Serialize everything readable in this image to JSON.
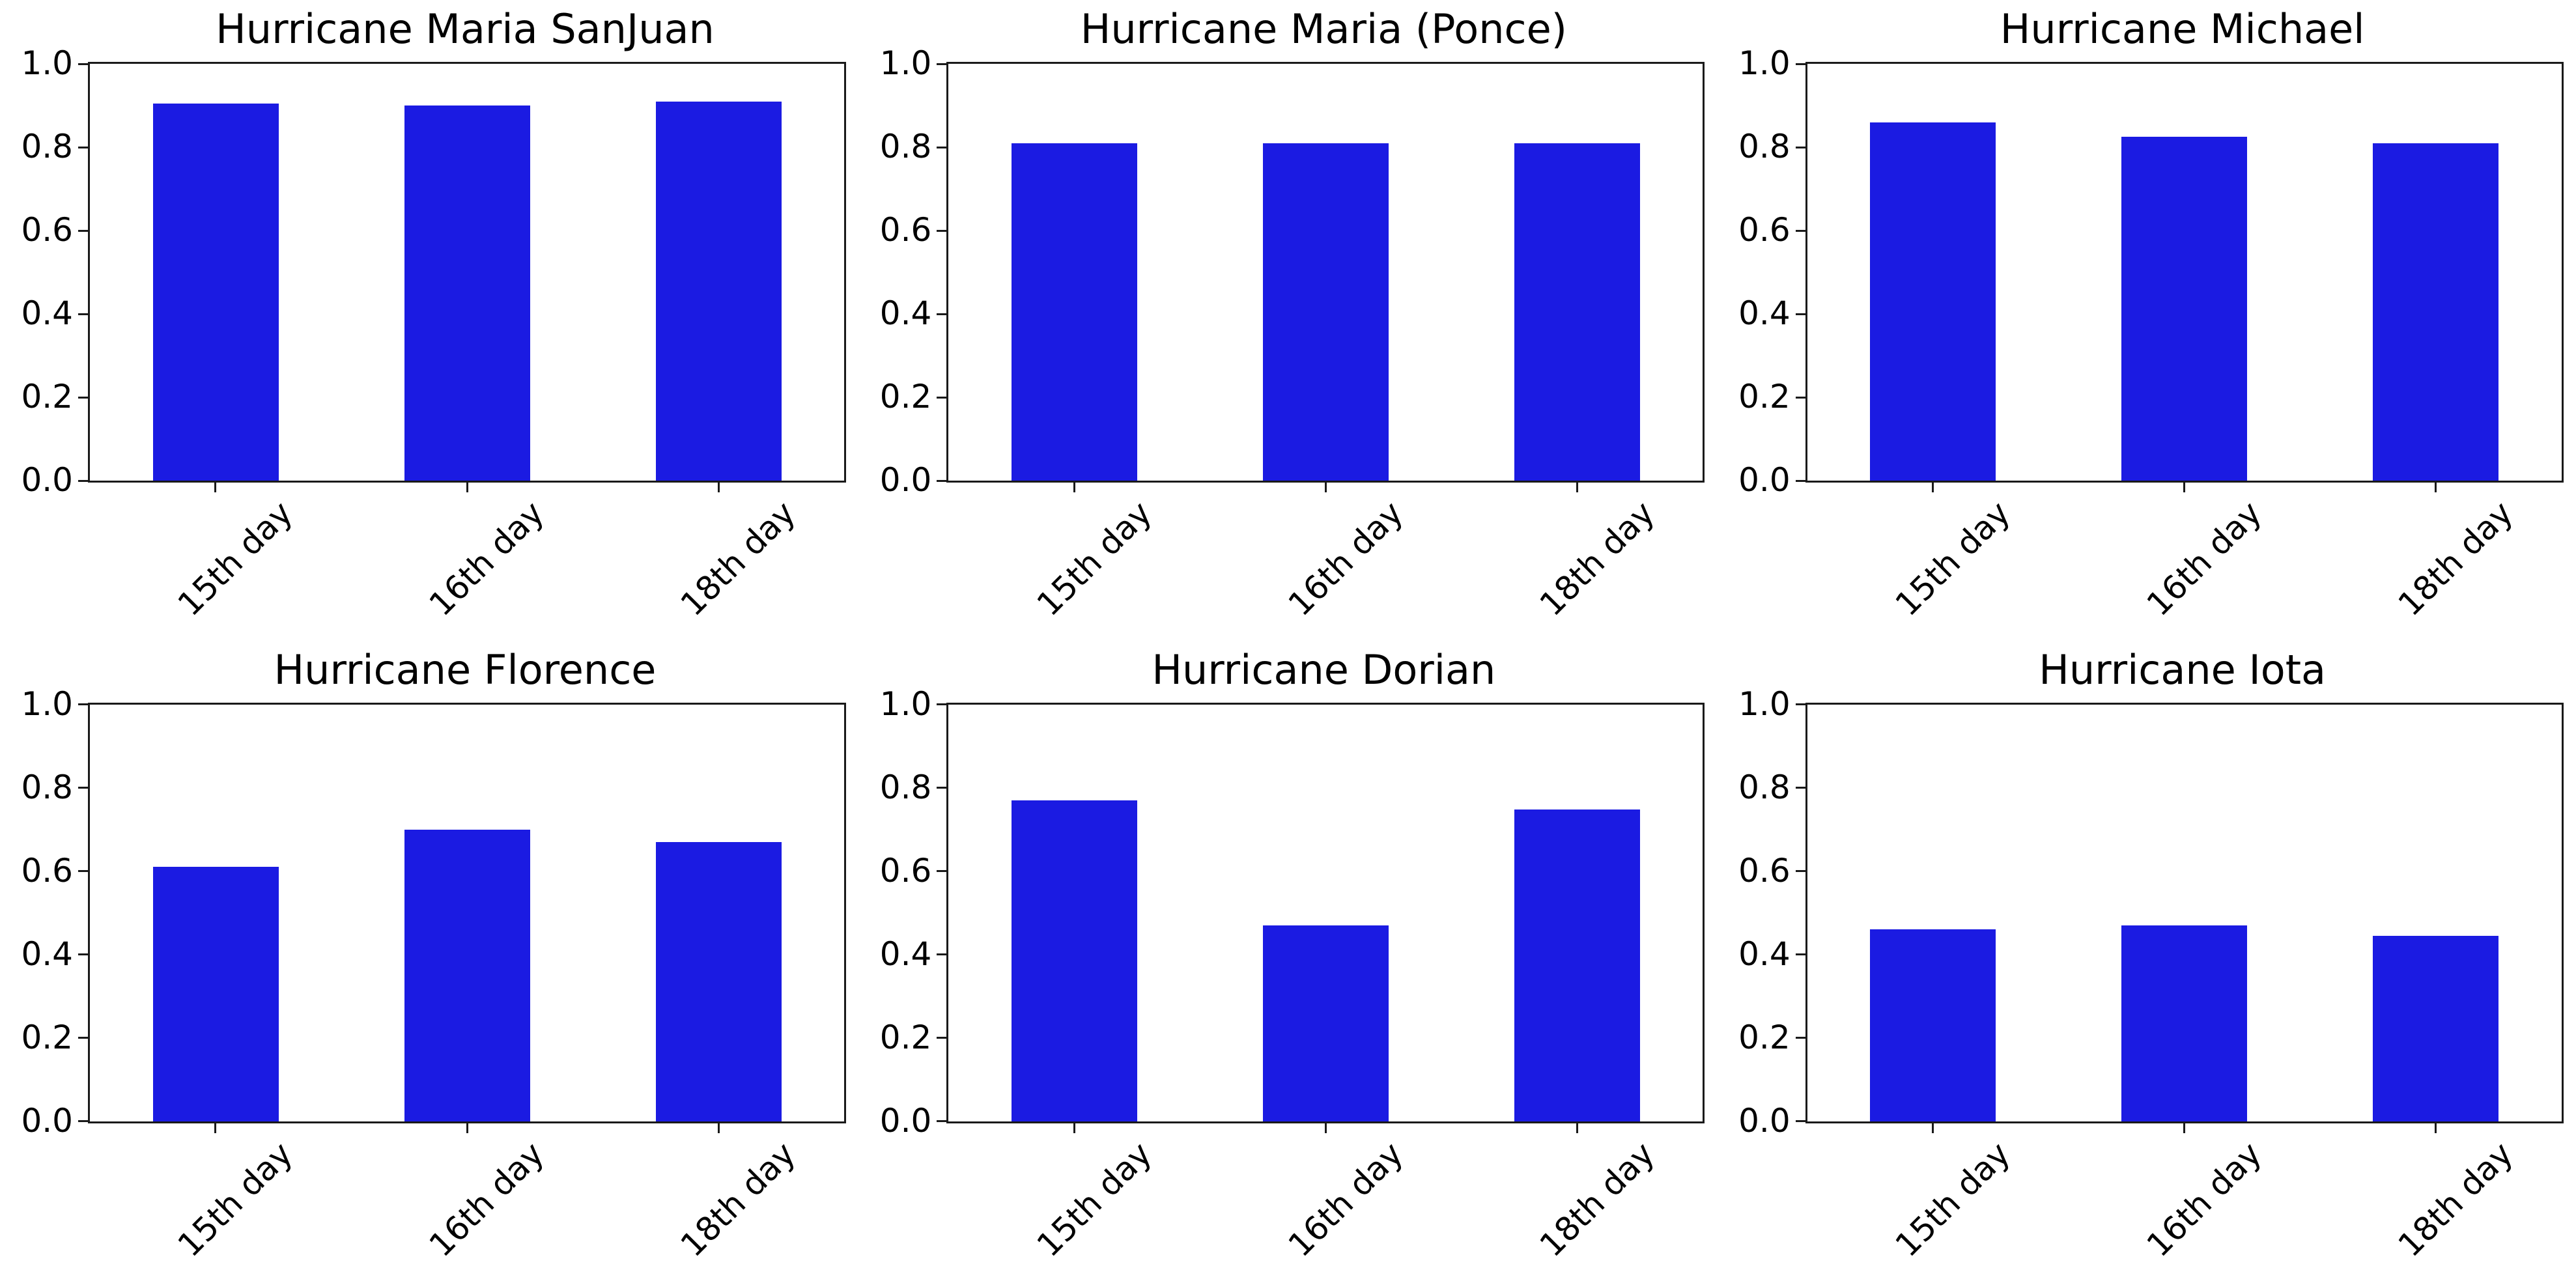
{
  "figure": {
    "background_color": "#ffffff",
    "bar_color": "#1b1be2",
    "spine_color": "#1a1a1a",
    "rows": 2,
    "cols": 3
  },
  "chart_data": [
    {
      "type": "bar",
      "title": "Hurricane Maria SanJuan",
      "categories": [
        "15th day",
        "16th day",
        "18th day"
      ],
      "values": [
        0.905,
        0.9,
        0.91
      ],
      "ylim": [
        0,
        1
      ],
      "yticks": [
        0.0,
        0.2,
        0.4,
        0.6,
        0.8,
        1.0
      ],
      "yticklabels": [
        "0.0",
        "0.2",
        "0.4",
        "0.6",
        "0.8",
        "1.0"
      ],
      "xlabel": "",
      "ylabel": "",
      "grid": false,
      "legend": false,
      "bar_color": "#1b1be2",
      "xtick_rotation": 45
    },
    {
      "type": "bar",
      "title": "Hurricane Maria (Ponce)",
      "categories": [
        "15th day",
        "16th day",
        "18th day"
      ],
      "values": [
        0.81,
        0.81,
        0.81
      ],
      "ylim": [
        0,
        1
      ],
      "yticks": [
        0.0,
        0.2,
        0.4,
        0.6,
        0.8,
        1.0
      ],
      "yticklabels": [
        "0.0",
        "0.2",
        "0.4",
        "0.6",
        "0.8",
        "1.0"
      ],
      "xlabel": "",
      "ylabel": "",
      "grid": false,
      "legend": false,
      "bar_color": "#1b1be2",
      "xtick_rotation": 45
    },
    {
      "type": "bar",
      "title": "Hurricane Michael",
      "categories": [
        "15th day",
        "16th day",
        "18th day"
      ],
      "values": [
        0.86,
        0.825,
        0.81
      ],
      "ylim": [
        0,
        1
      ],
      "yticks": [
        0.0,
        0.2,
        0.4,
        0.6,
        0.8,
        1.0
      ],
      "yticklabels": [
        "0.0",
        "0.2",
        "0.4",
        "0.6",
        "0.8",
        "1.0"
      ],
      "xlabel": "",
      "ylabel": "",
      "grid": false,
      "legend": false,
      "bar_color": "#1b1be2",
      "xtick_rotation": 45
    },
    {
      "type": "bar",
      "title": "Hurricane Florence",
      "categories": [
        "15th day",
        "16th day",
        "18th day"
      ],
      "values": [
        0.61,
        0.7,
        0.67
      ],
      "ylim": [
        0,
        1
      ],
      "yticks": [
        0.0,
        0.2,
        0.4,
        0.6,
        0.8,
        1.0
      ],
      "yticklabels": [
        "0.0",
        "0.2",
        "0.4",
        "0.6",
        "0.8",
        "1.0"
      ],
      "xlabel": "",
      "ylabel": "",
      "grid": false,
      "legend": false,
      "bar_color": "#1b1be2",
      "xtick_rotation": 45
    },
    {
      "type": "bar",
      "title": "Hurricane Dorian",
      "categories": [
        "15th day",
        "16th day",
        "18th day"
      ],
      "values": [
        0.77,
        0.47,
        0.748
      ],
      "ylim": [
        0,
        1
      ],
      "yticks": [
        0.0,
        0.2,
        0.4,
        0.6,
        0.8,
        1.0
      ],
      "yticklabels": [
        "0.0",
        "0.2",
        "0.4",
        "0.6",
        "0.8",
        "1.0"
      ],
      "xlabel": "",
      "ylabel": "",
      "grid": false,
      "legend": false,
      "bar_color": "#1b1be2",
      "xtick_rotation": 45
    },
    {
      "type": "bar",
      "title": "Hurricane Iota",
      "categories": [
        "15th day",
        "16th day",
        "18th day"
      ],
      "values": [
        0.46,
        0.47,
        0.445
      ],
      "ylim": [
        0,
        1
      ],
      "yticks": [
        0.0,
        0.2,
        0.4,
        0.6,
        0.8,
        1.0
      ],
      "yticklabels": [
        "0.0",
        "0.2",
        "0.4",
        "0.6",
        "0.8",
        "1.0"
      ],
      "xlabel": "",
      "ylabel": "",
      "grid": false,
      "legend": false,
      "bar_color": "#1b1be2",
      "xtick_rotation": 45
    }
  ]
}
